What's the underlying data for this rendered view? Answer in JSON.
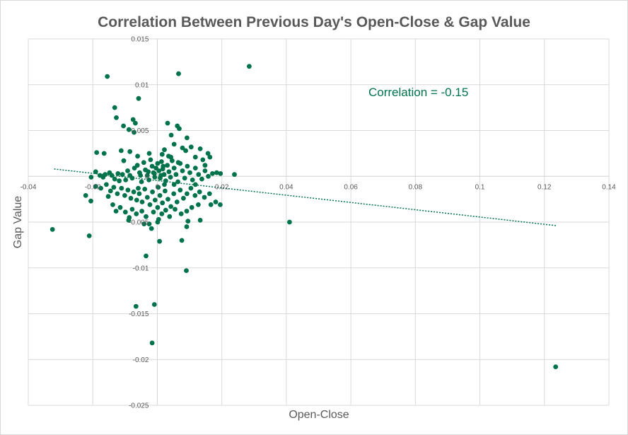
{
  "chart_data": {
    "type": "scatter",
    "title": "Correlation Between Previous  Day's Open-Close & Gap Value",
    "xlabel": "Open-Close",
    "ylabel": "Gap Value",
    "xlim": [
      -0.04,
      0.14
    ],
    "ylim": [
      -0.025,
      0.015
    ],
    "x_ticks": [
      -0.04,
      -0.02,
      0,
      0.02,
      0.04,
      0.06,
      0.08,
      0.1,
      0.12,
      0.14
    ],
    "x_tick_labels": [
      "-0.04",
      "-0.02",
      "0",
      "0.02",
      "0.04",
      "0.06",
      "0.08",
      "0.1",
      "0.12",
      "0.14"
    ],
    "y_ticks": [
      0.015,
      0.01,
      0.005,
      0,
      -0.005,
      -0.01,
      -0.015,
      -0.02,
      -0.025
    ],
    "y_tick_labels": [
      "0.015",
      "0.01",
      "0.005",
      "0",
      "-0.005",
      "-0.01",
      "-0.015",
      "-0.02",
      "-0.025"
    ],
    "grid": true,
    "annotation": "Correlation = -0.15",
    "trendline": {
      "style": "dotted",
      "x": [
        -0.032,
        0.124
      ],
      "y": [
        0.0008,
        -0.0054
      ]
    },
    "series": [
      {
        "color": "#00734a",
        "points": [
          [
            0.0285,
            0.012
          ],
          [
            0.0066,
            0.0112
          ],
          [
            -0.0155,
            0.0109
          ],
          [
            -0.0058,
            0.0085
          ],
          [
            -0.0132,
            0.0075
          ],
          [
            -0.0127,
            0.0064
          ],
          [
            -0.0075,
            0.0062
          ],
          [
            -0.0105,
            0.0055
          ],
          [
            -0.0068,
            0.0058
          ],
          [
            -0.0088,
            0.0051
          ],
          [
            -0.0072,
            0.0048
          ],
          [
            0.0032,
            0.0058
          ],
          [
            0.0062,
            0.0055
          ],
          [
            0.0068,
            0.0052
          ],
          [
            0.0092,
            0.0042
          ],
          [
            0.0043,
            0.0045
          ],
          [
            0.0052,
            0.0035
          ],
          [
            0.0105,
            0.0032
          ],
          [
            0.0133,
            0.003
          ],
          [
            0.0157,
            0.0025
          ],
          [
            -0.0188,
            0.0026
          ],
          [
            -0.0165,
            0.0025
          ],
          [
            -0.0112,
            0.0028
          ],
          [
            -0.0085,
            0.0027
          ],
          [
            -0.0061,
            0.0022
          ],
          [
            -0.0025,
            0.0025
          ],
          [
            0.0015,
            0.0024
          ],
          [
            0.0022,
            0.0029
          ],
          [
            0.0035,
            0.0022
          ],
          [
            0.0078,
            0.0031
          ],
          [
            0.0088,
            0.0028
          ],
          [
            0.0118,
            0.0021
          ],
          [
            0.0141,
            0.0018
          ],
          [
            0.0163,
            0.0021
          ],
          [
            -0.0191,
            0.0005
          ],
          [
            -0.0178,
            0.0001
          ],
          [
            -0.0168,
            -0.0001
          ],
          [
            -0.0162,
            0.0002
          ],
          [
            -0.0148,
            0.0004
          ],
          [
            -0.0141,
            0.0001
          ],
          [
            -0.0132,
            -0.0003
          ],
          [
            -0.0122,
            0.0003
          ],
          [
            -0.0118,
            -0.0005
          ],
          [
            -0.0108,
            0.0002
          ],
          [
            -0.0098,
            -0.0004
          ],
          [
            -0.0092,
            0.0006
          ],
          [
            -0.0085,
            0.0001
          ],
          [
            -0.0078,
            -0.0002
          ],
          [
            -0.0071,
            0.0009
          ],
          [
            -0.0062,
            0.0012
          ],
          [
            -0.0055,
            0.0004
          ],
          [
            -0.0049,
            -0.0006
          ],
          [
            -0.0042,
            0.0015
          ],
          [
            -0.0037,
            0.0007
          ],
          [
            -0.0031,
            0.0001
          ],
          [
            -0.0026,
            -0.0004
          ],
          [
            -0.0021,
            0.0018
          ],
          [
            -0.0016,
            0.0011
          ],
          [
            -0.0012,
            0.0004
          ],
          [
            -0.0008,
            -0.0001
          ],
          [
            -0.0004,
            0.0009
          ],
          [
            0.0001,
            0.0014
          ],
          [
            0.0005,
            0.0006
          ],
          [
            0.0009,
            -0.0002
          ],
          [
            0.0013,
            0.0016
          ],
          [
            0.0017,
            0.0008
          ],
          [
            0.0021,
            0.0002
          ],
          [
            0.0026,
            -0.0005
          ],
          [
            0.0031,
            0.0012
          ],
          [
            0.0036,
            0.0005
          ],
          [
            0.0041,
            -0.0001
          ],
          [
            0.0046,
            0.0017
          ],
          [
            0.0052,
            0.0009
          ],
          [
            0.0058,
            0.0002
          ],
          [
            0.0064,
            -0.0006
          ],
          [
            0.0071,
            0.0014
          ],
          [
            0.0078,
            0.0006
          ],
          [
            0.0085,
            -0.0002
          ],
          [
            0.0093,
            0.0011
          ],
          [
            0.0101,
            0.0004
          ],
          [
            0.0109,
            -0.0004
          ],
          [
            0.0118,
            0.0009
          ],
          [
            0.0128,
            0.0002
          ],
          [
            0.0138,
            -0.0003
          ],
          [
            0.0148,
            0.0006
          ],
          [
            0.0158,
            0.0
          ],
          [
            0.0171,
            0.0003
          ],
          [
            0.0184,
            0.0004
          ],
          [
            0.0196,
            0.0003
          ],
          [
            0.0239,
            0.0002
          ],
          [
            -0.0205,
            -0.0001
          ],
          [
            -0.0191,
            -0.0011
          ],
          [
            -0.0175,
            -0.0013
          ],
          [
            -0.0158,
            -0.0009
          ],
          [
            -0.0145,
            -0.0016
          ],
          [
            -0.0135,
            -0.0012
          ],
          [
            -0.0124,
            -0.0019
          ],
          [
            -0.0111,
            -0.0013
          ],
          [
            -0.0101,
            -0.0021
          ],
          [
            -0.0091,
            -0.0015
          ],
          [
            -0.0082,
            -0.0024
          ],
          [
            -0.0073,
            -0.0017
          ],
          [
            -0.0064,
            -0.0026
          ],
          [
            -0.0056,
            -0.0019
          ],
          [
            -0.0047,
            -0.0028
          ],
          [
            -0.0039,
            -0.0014
          ],
          [
            -0.0031,
            -0.0023
          ],
          [
            -0.0023,
            -0.0031
          ],
          [
            -0.0015,
            -0.0017
          ],
          [
            -0.0007,
            -0.0026
          ],
          [
            0.0001,
            -0.0034
          ],
          [
            0.0008,
            -0.0021
          ],
          [
            0.0016,
            -0.0029
          ],
          [
            0.0024,
            -0.0016
          ],
          [
            0.0033,
            -0.0025
          ],
          [
            0.0042,
            -0.0033
          ],
          [
            0.0051,
            -0.0019
          ],
          [
            0.0061,
            -0.0028
          ],
          [
            0.0071,
            -0.0015
          ],
          [
            0.0081,
            -0.0024
          ],
          [
            0.0092,
            -0.0019
          ],
          [
            0.0104,
            -0.0013
          ],
          [
            0.0117,
            -0.0021
          ],
          [
            0.0131,
            -0.0017
          ],
          [
            0.0146,
            -0.0023
          ],
          [
            0.0162,
            -0.0019
          ],
          [
            0.0181,
            -0.0028
          ],
          [
            0.0195,
            -0.0031
          ],
          [
            -0.0222,
            -0.0021
          ],
          [
            -0.0206,
            -0.0027
          ],
          [
            -0.0138,
            -0.0031
          ],
          [
            -0.0128,
            -0.0038
          ],
          [
            -0.0115,
            -0.0034
          ],
          [
            -0.0099,
            -0.0039
          ],
          [
            -0.0087,
            -0.0045
          ],
          [
            -0.0078,
            -0.0036
          ],
          [
            -0.0065,
            -0.0041
          ],
          [
            -0.0048,
            -0.0038
          ],
          [
            -0.0035,
            -0.0044
          ],
          [
            -0.0025,
            -0.0052
          ],
          [
            -0.0012,
            -0.0039
          ],
          [
            0.0004,
            -0.0047
          ],
          [
            0.0014,
            -0.0041
          ],
          [
            0.0026,
            -0.0037
          ],
          [
            0.0038,
            -0.0044
          ],
          [
            0.0055,
            -0.0036
          ],
          [
            0.0074,
            -0.0041
          ],
          [
            0.0091,
            -0.0038
          ],
          [
            0.0107,
            -0.0034
          ],
          [
            0.0127,
            -0.0031
          ],
          [
            0.0166,
            -0.0031
          ],
          [
            0.0133,
            -0.0048
          ],
          [
            0.0095,
            -0.0049
          ],
          [
            0.0091,
            -0.0055
          ],
          [
            0.0001,
            -0.005
          ],
          [
            -0.0041,
            -0.0052
          ],
          [
            -0.0089,
            -0.0048
          ],
          [
            -0.0018,
            -0.0057
          ],
          [
            0.0007,
            -0.0071
          ],
          [
            0.0076,
            -0.007
          ],
          [
            0.009,
            -0.0103
          ],
          [
            -0.0035,
            -0.0087
          ],
          [
            -0.0066,
            -0.0142
          ],
          [
            -0.0009,
            -0.014
          ],
          [
            -0.0016,
            -0.0182
          ],
          [
            0.1235,
            -0.0208
          ],
          [
            0.041,
            -0.005
          ],
          [
            -0.0325,
            -0.0058
          ],
          [
            -0.0211,
            -0.0065
          ],
          [
            0.0052,
            -0.0009
          ],
          [
            -0.0052,
            0.0001
          ],
          [
            0.0022,
            -0.0009
          ],
          [
            -0.0028,
            0.0005
          ],
          [
            0.0065,
            0.0015
          ],
          [
            -0.0104,
            0.0017
          ],
          [
            0.0118,
            -0.0009
          ],
          [
            -0.0152,
            -0.0022
          ],
          [
            0.0148,
            0.0012
          ],
          [
            -0.0059,
            -0.0013
          ],
          [
            0.0042,
            0.0021
          ],
          [
            0.0011,
            0.0001
          ],
          [
            -0.0009,
            0.0003
          ],
          [
            0.0003,
            -0.0012
          ],
          [
            0.0018,
            0.0011
          ]
        ]
      }
    ]
  }
}
